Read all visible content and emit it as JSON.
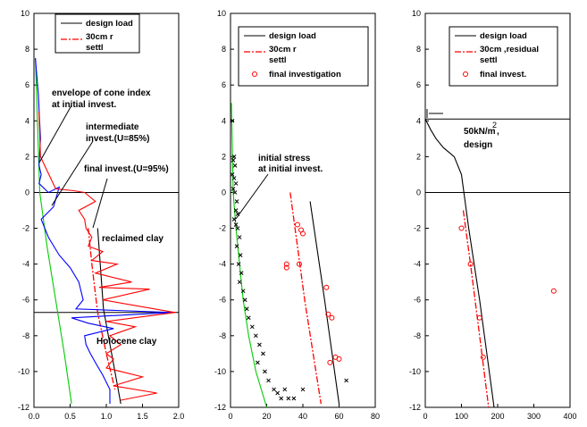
{
  "chart_data": [
    {
      "type": "line",
      "title": "",
      "xlabel": "",
      "ylabel": "",
      "xlim": [
        0,
        2.0
      ],
      "ylim": [
        -12,
        10
      ],
      "x_ticks": [
        "0.0",
        "0.5",
        "1.0",
        "1.5",
        "2.0"
      ],
      "y_ticks": [
        "-12",
        "-10",
        "-8",
        "-6",
        "-4",
        "-2",
        "0",
        "2",
        "4",
        "6",
        "8",
        "10"
      ],
      "legend": [
        "design load",
        "30cm r",
        "settl"
      ],
      "annotations": [
        "envelope of cone index",
        "at initial invest.",
        "intermediate",
        "invest.(U=85%)",
        "final invest.(U=95%)",
        "reclaimed clay",
        "Holocene clay"
      ],
      "reference_lines": [
        0,
        -6.7
      ],
      "series": [
        {
          "color": "#000000",
          "dash": "solid",
          "x": [
            0.88,
            0.96,
            1.2
          ],
          "y": [
            -2,
            -6.5,
            -11.8
          ]
        },
        {
          "color": "#ff0000",
          "dash": "dashdot",
          "x": [
            0.75,
            0.8,
            0.88,
            1.0,
            1.12
          ],
          "y": [
            -2,
            -4,
            -6.7,
            -9,
            -11
          ]
        },
        {
          "color": "#00cc00",
          "dash": "solid",
          "x": [
            0.02,
            0.08,
            0.18,
            0.3,
            0.42,
            0.52
          ],
          "y": [
            7.5,
            0,
            -3,
            -6,
            -9,
            -11.8
          ]
        },
        {
          "color": "#0000ff",
          "dash": "solid",
          "x": [
            0.02,
            0.06,
            0.09,
            0.07,
            0.1,
            0.07,
            0.2,
            0.35,
            0.27,
            0.1,
            0.2,
            0.35,
            0.5,
            0.62,
            0.68,
            0.58,
            1.9,
            0.52,
            0.75,
            1.1,
            0.7,
            0.72,
            0.78,
            0.85,
            0.95,
            1.05,
            1.05
          ],
          "y": [
            7.5,
            5.5,
            3,
            1.5,
            1,
            0.5,
            0,
            0.3,
            -0.8,
            -1.5,
            -2.5,
            -3.5,
            -4.2,
            -5,
            -6,
            -6.5,
            -6.7,
            -7,
            -7.3,
            -7.6,
            -8,
            -8.5,
            -9,
            -9.5,
            -10.2,
            -11,
            -11.8
          ]
        },
        {
          "color": "#ff0000",
          "dash": "solid",
          "x": [
            0.07,
            0.09,
            0.3,
            0.55,
            0.7,
            0.85,
            0.62,
            0.7,
            0.72,
            0.8,
            0.75,
            0.95,
            0.8,
            1.15,
            0.85,
            1.35,
            0.9,
            1.6,
            0.95,
            1.95,
            1.0,
            1.4,
            1.05,
            1.2,
            1.0,
            1.1,
            1.0,
            1.5,
            1.1,
            1.7,
            1.2
          ],
          "y": [
            4.5,
            2,
            0.2,
            0.1,
            0,
            -0.5,
            -1,
            -1.5,
            -2,
            -2.5,
            -3,
            -3.3,
            -3.8,
            -4,
            -4.5,
            -5,
            -5.3,
            -5.4,
            -6,
            -6.7,
            -7.2,
            -7.5,
            -8,
            -8.5,
            -9,
            -9.3,
            -9.8,
            -10.3,
            -10.8,
            -11.2,
            -11.6
          ]
        }
      ]
    },
    {
      "type": "scatter",
      "title": "",
      "xlabel": "",
      "ylabel": "",
      "xlim": [
        0,
        80
      ],
      "ylim": [
        -12,
        10
      ],
      "x_ticks": [
        "0",
        "20",
        "40",
        "60",
        "80"
      ],
      "y_ticks": [
        "-12",
        "-10",
        "-8",
        "-6",
        "-4",
        "-2",
        "0",
        "2",
        "4",
        "6",
        "8",
        "10"
      ],
      "legend": [
        "design load",
        "30cm r",
        "settl",
        "final investigation"
      ],
      "annotations": [
        "initial stress",
        "at initial invest."
      ],
      "series": [
        {
          "color": "#000000",
          "dash": "solid",
          "x": [
            44,
            52,
            60
          ],
          "y": [
            -0.5,
            -6,
            -11.8
          ]
        },
        {
          "color": "#ff0000",
          "dash": "dashdot",
          "x": [
            33,
            41,
            50
          ],
          "y": [
            0,
            -6,
            -11.8
          ]
        },
        {
          "color": "#00cc00",
          "dash": "solid",
          "x": [
            0.5,
            1.5,
            3,
            5,
            7,
            10,
            14,
            20
          ],
          "y": [
            5,
            0,
            -2,
            -4,
            -6,
            -8,
            -10,
            -12
          ]
        },
        {
          "color": "#ff0000",
          "marker": "circle",
          "x": [
            37,
            39,
            31,
            31,
            38,
            40,
            53,
            54,
            56,
            55,
            58,
            60
          ],
          "y": [
            -1.8,
            -2.1,
            -4.2,
            -4,
            -4,
            -2.3,
            -5.3,
            -6.8,
            -7,
            -9.5,
            -9.2,
            -9.3
          ]
        },
        {
          "color": "#000000",
          "marker": "circle",
          "x": [
            62.5
          ],
          "y": [
            6.3
          ]
        },
        {
          "color": "#000000",
          "marker": "x",
          "x": [
            1,
            2,
            1.5,
            2.5,
            1,
            2,
            3,
            1.5,
            2.5,
            3.5,
            3,
            4,
            2,
            3,
            4,
            5,
            3.5,
            5.5,
            4.5,
            6,
            5,
            7,
            8,
            9,
            10,
            12,
            14,
            16,
            18,
            15,
            19,
            21,
            24,
            26,
            28,
            30,
            32,
            35,
            40,
            64
          ],
          "y": [
            4,
            2,
            1.8,
            1.5,
            1,
            0.8,
            0.5,
            0.2,
            0,
            -0.5,
            -1,
            -1.2,
            -1.5,
            -1.8,
            -2,
            -2.5,
            -3,
            -3.5,
            -4,
            -4.5,
            -5,
            -5.5,
            -6,
            -6.5,
            -7,
            -7.5,
            -8,
            -8.5,
            -9,
            -9.5,
            -10,
            -10.5,
            -11,
            -11.2,
            -11.5,
            -11,
            -11.5,
            -11.5,
            -11,
            -10.5
          ]
        }
      ]
    },
    {
      "type": "scatter",
      "title": "",
      "xlabel": "",
      "ylabel": "",
      "xlim": [
        0,
        400
      ],
      "ylim": [
        -12,
        10
      ],
      "x_ticks": [
        "0",
        "100",
        "200",
        "300",
        "400"
      ],
      "y_ticks": [
        "-12",
        "-10",
        "-8",
        "-6",
        "-4",
        "-2",
        "0",
        "2",
        "4",
        "6",
        "8",
        "10"
      ],
      "legend": [
        "design load",
        "30cm ,residual",
        "settl",
        "final invest."
      ],
      "annotations": [
        "50kN/m",
        "2",
        ",",
        "design"
      ],
      "reference_lines": [
        4.1,
        0
      ],
      "series": [
        {
          "color": "#000000",
          "dash": "solid",
          "x": [
            0,
            15,
            30,
            50,
            80,
            100,
            120,
            150,
            190
          ],
          "y": [
            4.1,
            3.5,
            3,
            2.5,
            2,
            1,
            -2,
            -6,
            -12
          ]
        },
        {
          "color": "#ff0000",
          "dash": "dashdot",
          "x": [
            105,
            125,
            150,
            175
          ],
          "y": [
            -1,
            -4,
            -8,
            -12
          ]
        },
        {
          "color": "#ff0000",
          "marker": "circle",
          "x": [
            100,
            125,
            150,
            160,
            355
          ],
          "y": [
            -2,
            -4,
            -7,
            -9.2,
            -5.5
          ]
        }
      ]
    }
  ]
}
